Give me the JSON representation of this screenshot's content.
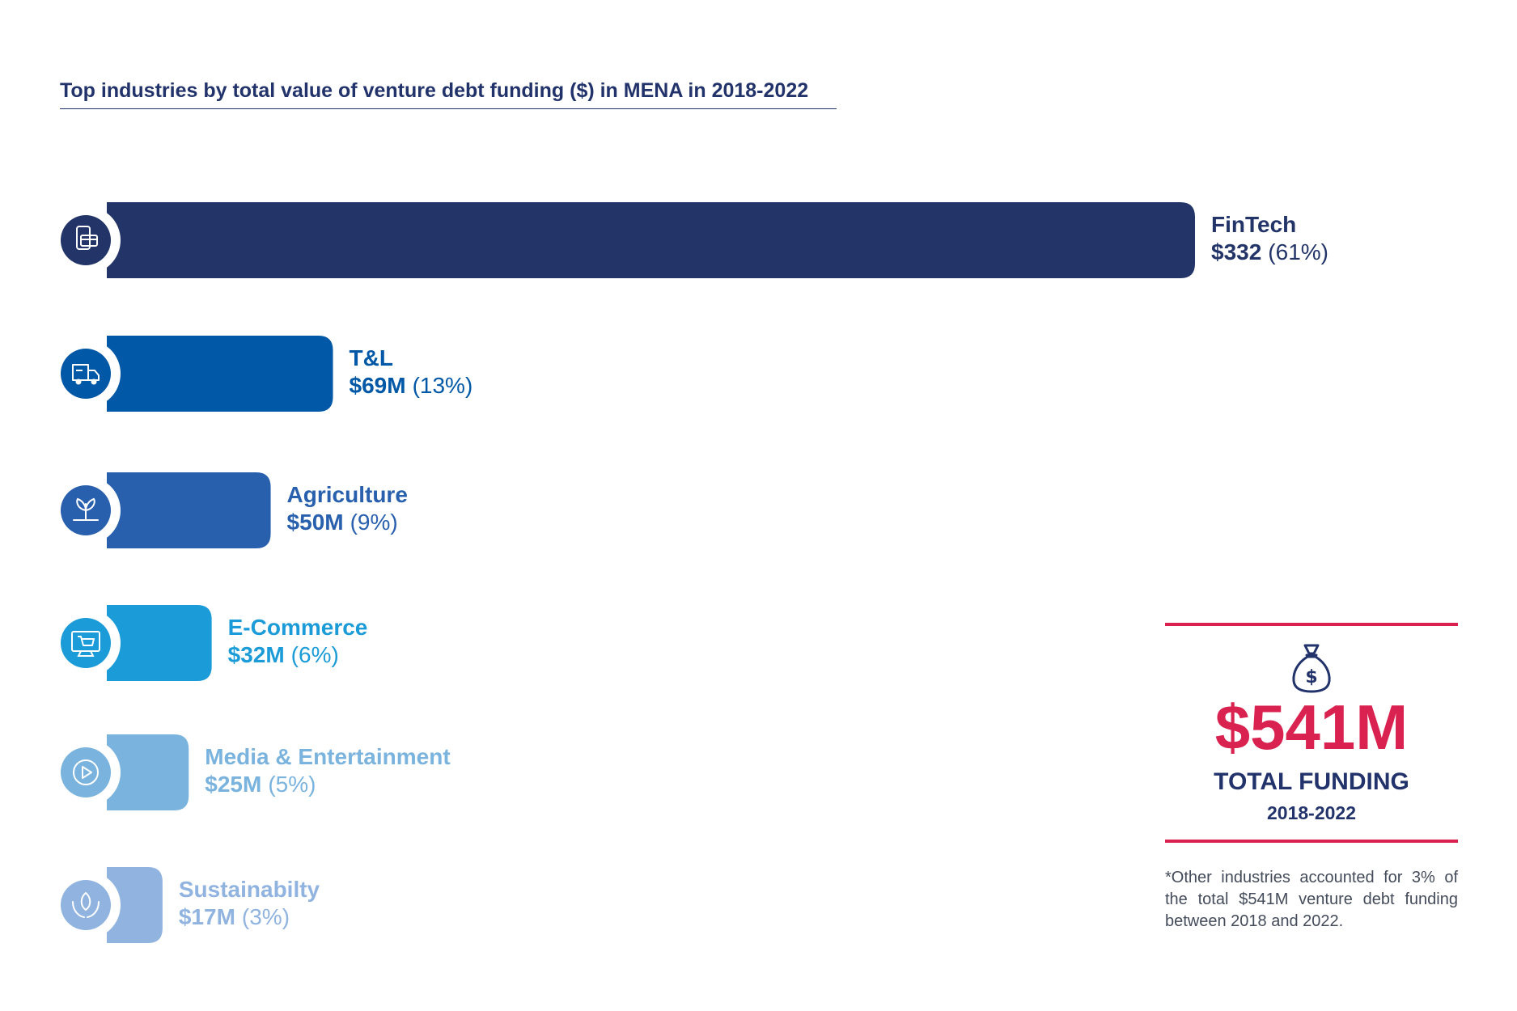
{
  "title": "Top industries by total value of venture debt funding ($) in MENA in 2018-2022",
  "chart_data": {
    "type": "bar",
    "orientation": "horizontal",
    "title": "Top industries by total value of venture debt funding ($) in MENA in 2018-2022",
    "categories": [
      "FinTech",
      "T&L",
      "Agriculture",
      "E-Commerce",
      "Media & Entertainment",
      "Sustainabilty"
    ],
    "values": [
      332,
      69,
      50,
      32,
      25,
      17
    ],
    "value_labels": [
      "$332",
      "$69M",
      "$50M",
      "$32M",
      "$25M",
      "$17M"
    ],
    "percent_labels": [
      "(61%)",
      "(13%)",
      "(9%)",
      "(6%)",
      "(5%)",
      "(3%)"
    ],
    "colors": [
      "#223468",
      "#0058a6",
      "#2860ae",
      "#1b9bd7",
      "#7ab3dd",
      "#90b3e0"
    ],
    "icons": [
      "payment-card-icon",
      "delivery-truck-icon",
      "plant-icon",
      "shopping-cart-monitor-icon",
      "play-icon",
      "hands-leaf-icon"
    ],
    "xlim": [
      0,
      332
    ],
    "grid": false,
    "legend": "none"
  },
  "total": {
    "amount": "$541M",
    "label": "TOTAL FUNDING",
    "years": "2018-2022",
    "icon": "money-bag-icon",
    "accent": "#d9224f"
  },
  "footnote": "*Other industries accounted for 3% of the total $541M venture debt funding between 2018 and 2022."
}
